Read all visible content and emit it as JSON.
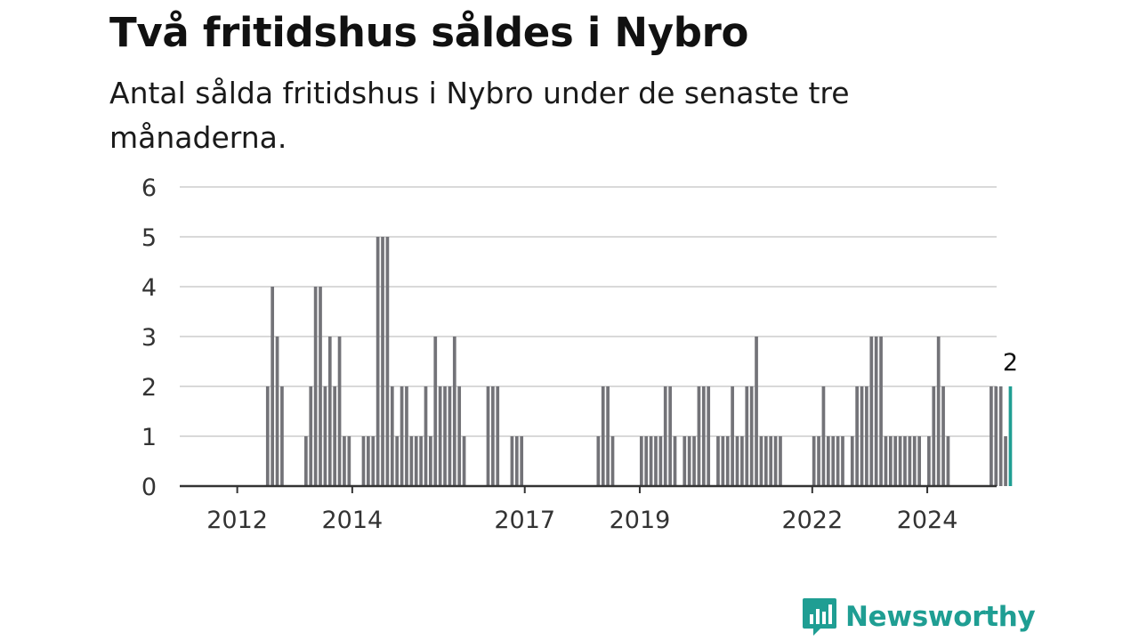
{
  "header": {
    "title": "Två fritidshus såldes i Nybro",
    "subtitle": "Antal sålda fritidshus i Nybro under de senaste tre månaderna."
  },
  "brand": {
    "name": "Newsworthy",
    "icon": "newsworthy-logo-icon",
    "color": "#1f9e93"
  },
  "chart_data": {
    "type": "bar",
    "title": "Två fritidshus såldes i Nybro",
    "subtitle": "Antal sålda fritidshus i Nybro under de senaste tre månaderna.",
    "xlabel": "",
    "ylabel": "",
    "ylim": [
      0,
      6
    ],
    "yticks": [
      "0",
      "1",
      "2",
      "3",
      "4",
      "5",
      "6"
    ],
    "grid": true,
    "x_start": "2011-01",
    "x_step": "month",
    "xticks": [
      {
        "label": "2012",
        "x": "2012-01"
      },
      {
        "label": "2014",
        "x": "2014-01"
      },
      {
        "label": "2017",
        "x": "2017-01"
      },
      {
        "label": "2019",
        "x": "2019-01"
      },
      {
        "label": "2022",
        "x": "2022-01"
      },
      {
        "label": "2024",
        "x": "2024-01"
      }
    ],
    "bar_color": "#737378",
    "highlight_color": "#1f9e93",
    "highlight_label": "2",
    "values": [
      0,
      0,
      0,
      0,
      0,
      0,
      0,
      0,
      0,
      0,
      0,
      0,
      0,
      0,
      0,
      0,
      0,
      0,
      2,
      4,
      3,
      2,
      0,
      0,
      0,
      0,
      1,
      2,
      4,
      4,
      2,
      3,
      2,
      3,
      1,
      1,
      0,
      0,
      1,
      1,
      1,
      5,
      5,
      5,
      2,
      1,
      2,
      2,
      1,
      1,
      1,
      2,
      1,
      3,
      2,
      2,
      2,
      3,
      2,
      1,
      0,
      0,
      0,
      0,
      2,
      2,
      2,
      0,
      0,
      1,
      1,
      1,
      0,
      0,
      0,
      0,
      0,
      0,
      0,
      0,
      0,
      0,
      0,
      0,
      0,
      0,
      0,
      1,
      2,
      2,
      1,
      0,
      0,
      0,
      0,
      0,
      1,
      1,
      1,
      1,
      1,
      2,
      2,
      1,
      0,
      1,
      1,
      1,
      2,
      2,
      2,
      0,
      1,
      1,
      1,
      2,
      1,
      1,
      2,
      2,
      3,
      1,
      1,
      1,
      1,
      1,
      0,
      0,
      0,
      0,
      0,
      0,
      1,
      1,
      2,
      1,
      1,
      1,
      1,
      0,
      1,
      2,
      2,
      2,
      3,
      3,
      3,
      1,
      1,
      1,
      1,
      1,
      1,
      1,
      1,
      0,
      1,
      2,
      3,
      2,
      1,
      0,
      0,
      0,
      0,
      0,
      0,
      0,
      0,
      2,
      2,
      2,
      1,
      2
    ]
  }
}
